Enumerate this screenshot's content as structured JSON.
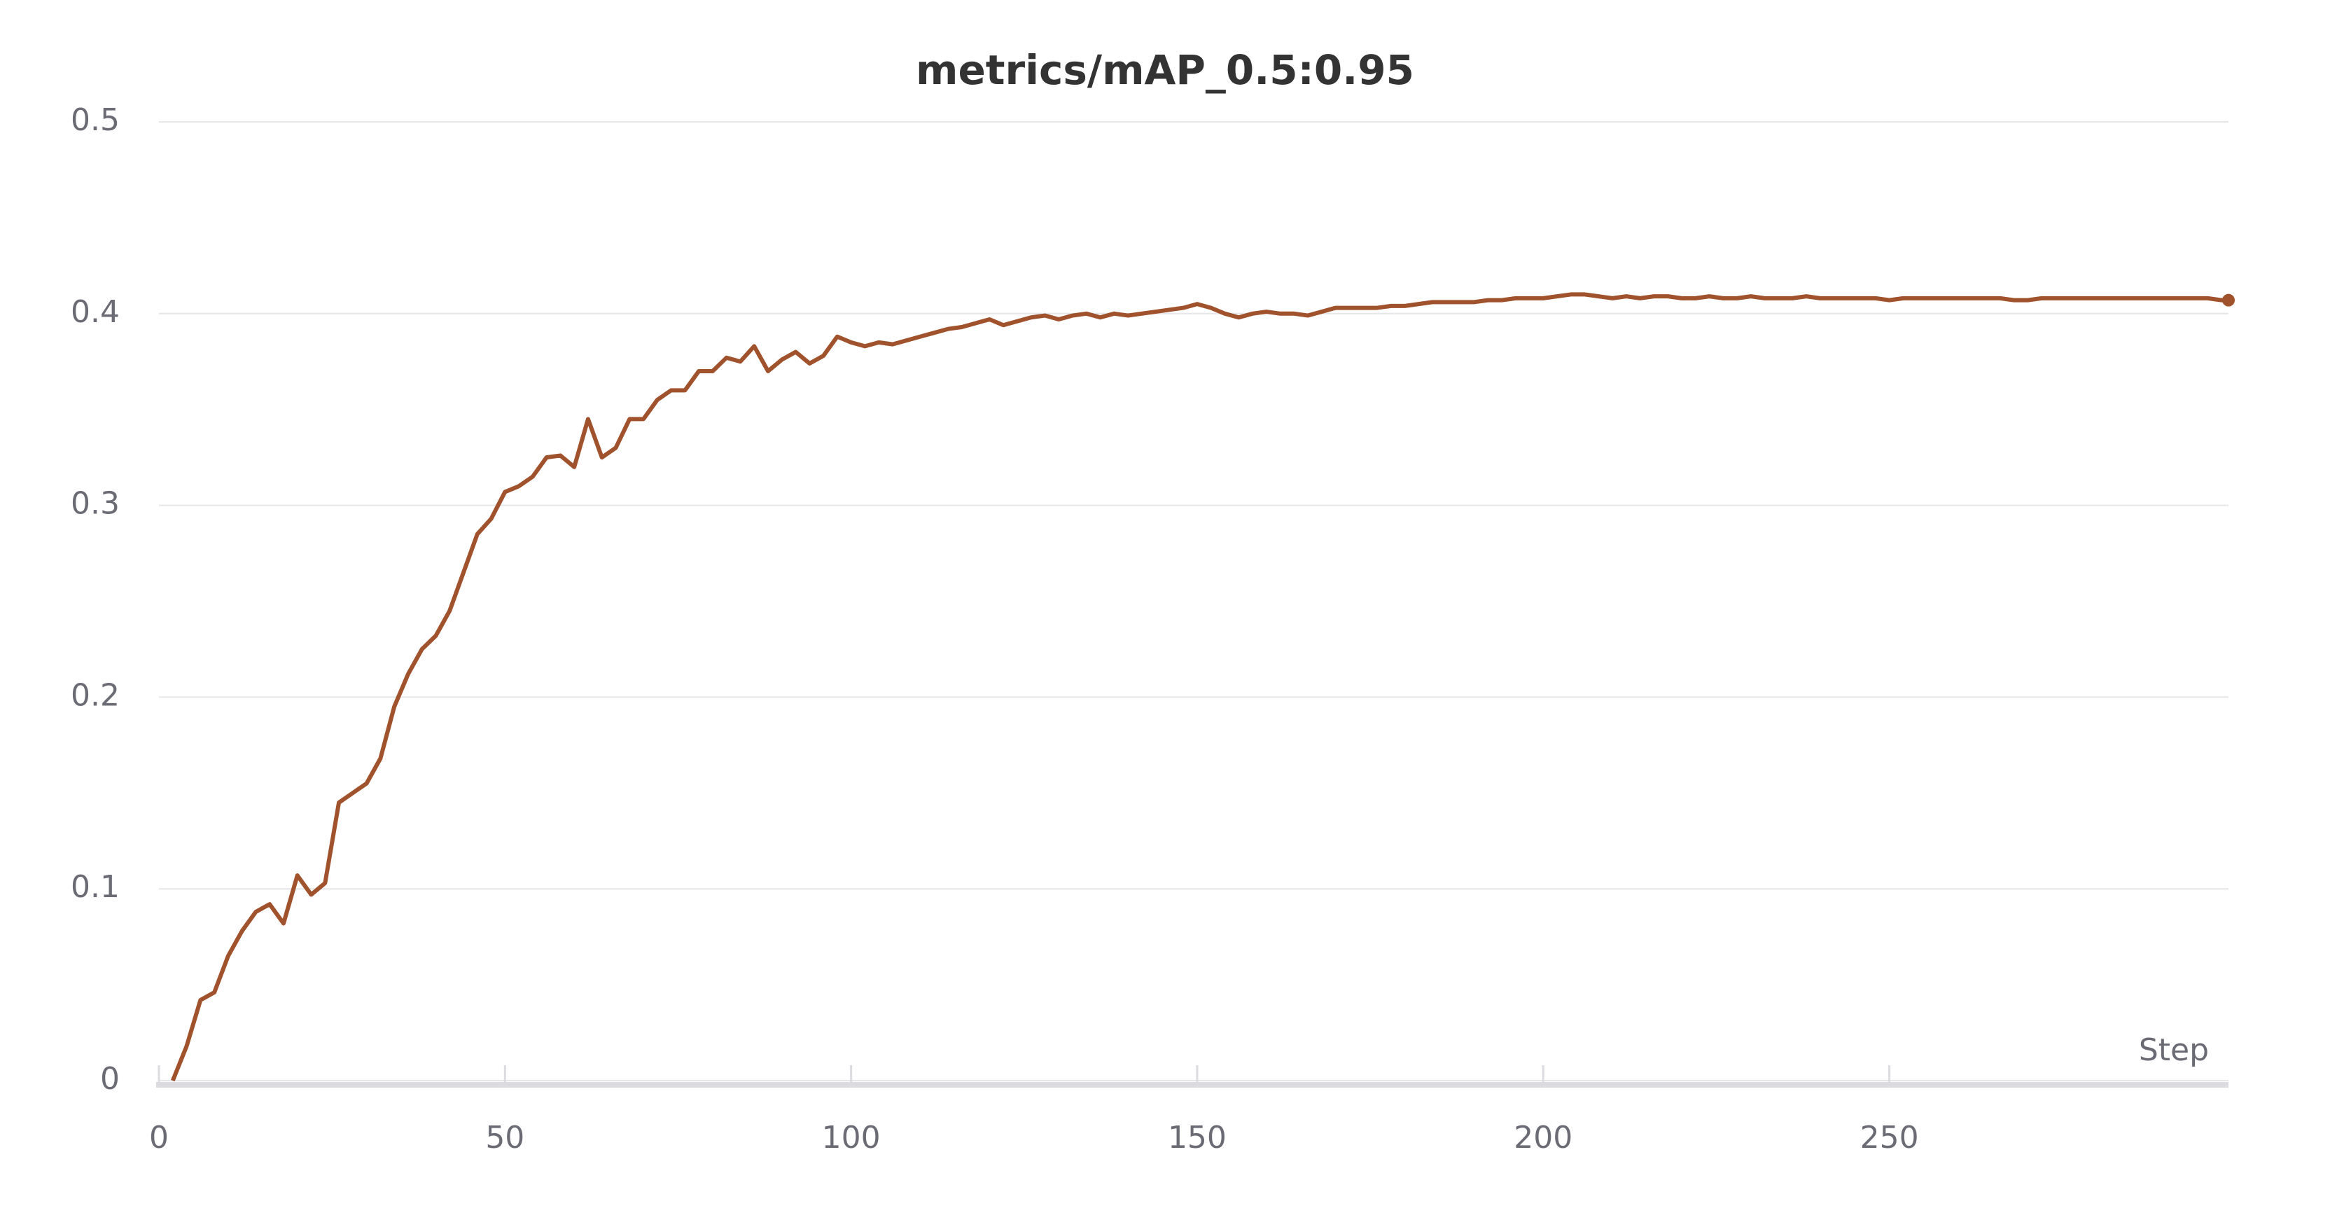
{
  "chart_data": {
    "type": "line",
    "title": "metrics/mAP_0.5:0.95",
    "x_label": "Step",
    "x": [
      2,
      4,
      6,
      8,
      10,
      12,
      14,
      16,
      18,
      20,
      22,
      24,
      26,
      28,
      30,
      32,
      34,
      36,
      38,
      40,
      42,
      44,
      46,
      48,
      50,
      52,
      54,
      56,
      58,
      60,
      62,
      64,
      66,
      68,
      70,
      72,
      74,
      76,
      78,
      80,
      82,
      84,
      86,
      88,
      90,
      92,
      94,
      96,
      98,
      100,
      102,
      104,
      106,
      108,
      110,
      112,
      114,
      116,
      118,
      120,
      122,
      124,
      126,
      128,
      130,
      132,
      134,
      136,
      138,
      140,
      142,
      144,
      146,
      148,
      150,
      152,
      154,
      156,
      158,
      160,
      162,
      164,
      166,
      168,
      170,
      172,
      174,
      176,
      178,
      180,
      182,
      184,
      186,
      188,
      190,
      192,
      194,
      196,
      198,
      200,
      202,
      204,
      206,
      208,
      210,
      212,
      214,
      216,
      218,
      220,
      222,
      224,
      226,
      228,
      230,
      232,
      234,
      236,
      238,
      240,
      242,
      244,
      246,
      248,
      250,
      252,
      254,
      256,
      258,
      260,
      262,
      264,
      266,
      268,
      270,
      272,
      274,
      276,
      278,
      280,
      282,
      284,
      286,
      288,
      290,
      292,
      294,
      296,
      298,
      299
    ],
    "values": [
      0,
      0.018,
      0.042,
      0.046,
      0.065,
      0.078,
      0.088,
      0.092,
      0.082,
      0.107,
      0.097,
      0.103,
      0.145,
      0.15,
      0.155,
      0.168,
      0.195,
      0.212,
      0.225,
      0.232,
      0.245,
      0.265,
      0.285,
      0.293,
      0.307,
      0.31,
      0.315,
      0.325,
      0.326,
      0.32,
      0.345,
      0.325,
      0.33,
      0.345,
      0.345,
      0.355,
      0.36,
      0.36,
      0.37,
      0.37,
      0.377,
      0.375,
      0.383,
      0.37,
      0.376,
      0.38,
      0.374,
      0.378,
      0.388,
      0.385,
      0.383,
      0.385,
      0.384,
      0.386,
      0.388,
      0.39,
      0.392,
      0.393,
      0.395,
      0.397,
      0.394,
      0.396,
      0.398,
      0.399,
      0.397,
      0.399,
      0.4,
      0.398,
      0.4,
      0.399,
      0.4,
      0.401,
      0.402,
      0.403,
      0.405,
      0.403,
      0.4,
      0.398,
      0.4,
      0.401,
      0.4,
      0.4,
      0.399,
      0.401,
      0.403,
      0.403,
      0.403,
      0.403,
      0.404,
      0.404,
      0.405,
      0.406,
      0.406,
      0.406,
      0.406,
      0.407,
      0.407,
      0.408,
      0.408,
      0.408,
      0.409,
      0.41,
      0.41,
      0.409,
      0.408,
      0.409,
      0.408,
      0.409,
      0.409,
      0.408,
      0.408,
      0.409,
      0.408,
      0.408,
      0.409,
      0.408,
      0.408,
      0.408,
      0.409,
      0.408,
      0.408,
      0.408,
      0.408,
      0.408,
      0.407,
      0.408,
      0.408,
      0.408,
      0.408,
      0.408,
      0.408,
      0.408,
      0.408,
      0.407,
      0.407,
      0.408,
      0.408,
      0.408,
      0.408,
      0.408,
      0.408,
      0.408,
      0.408,
      0.408,
      0.408,
      0.408,
      0.408,
      0.408,
      0.407,
      0.407
    ],
    "color": "#a0522d",
    "xlim": [
      0,
      299
    ],
    "xticks": [
      0,
      50,
      100,
      150,
      200,
      250
    ],
    "ylim": [
      0,
      0.5
    ],
    "yticks": [
      0,
      0.1,
      0.2,
      0.3,
      0.4,
      0.5
    ],
    "grid": true
  }
}
